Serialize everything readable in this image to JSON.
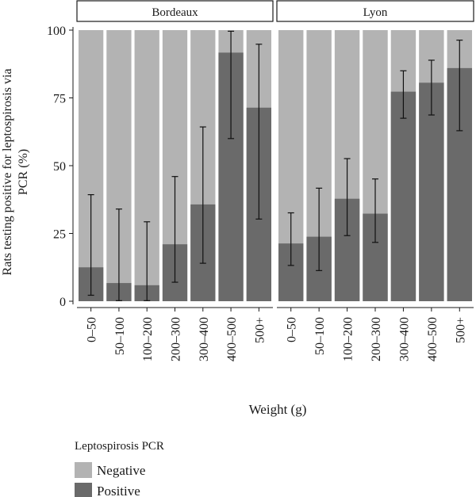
{
  "chart_data": {
    "type": "bar",
    "stacked": true,
    "facets": [
      "Bordeaux",
      "Lyon"
    ],
    "categories": [
      "0–50",
      "50–100",
      "100–200",
      "200–300",
      "300–400",
      "400–500",
      "500+"
    ],
    "xlabel": "Weight (g)",
    "ylabel_line1": "Rats testing positive for leptospirosis via",
    "ylabel_line2": "PCR (%)",
    "yticks": [
      "0",
      "25",
      "50",
      "75",
      "100"
    ],
    "ylim": [
      0,
      100
    ],
    "series": [
      {
        "name": "Positive",
        "color": "#6a6a6a",
        "panels": [
          {
            "facet": "Bordeaux",
            "values": [
              12.5,
              6.7,
              5.9,
              21,
              35.7,
              91.7,
              71.4
            ]
          },
          {
            "facet": "Lyon",
            "values": [
              21.3,
              23.8,
              37.8,
              32.3,
              77.3,
              80.6,
              86.0
            ]
          }
        ]
      },
      {
        "name": "Negative",
        "color": "#b3b3b3"
      }
    ],
    "error_bars": [
      {
        "facet": "Bordeaux",
        "low": [
          2.2,
          0.2,
          0.2,
          7.0,
          14.0,
          60.0,
          30.3
        ],
        "high": [
          39.3,
          34.0,
          29.3,
          46.0,
          64.3,
          99.6,
          94.8
        ]
      },
      {
        "facet": "Lyon",
        "low": [
          13.2,
          11.3,
          24.2,
          21.7,
          67.5,
          68.7,
          62.9
        ],
        "high": [
          32.6,
          41.7,
          52.6,
          45.1,
          85.0,
          88.9,
          96.3
        ]
      }
    ],
    "legend": {
      "title": "Leptospirosis PCR",
      "items": [
        {
          "label": "Negative",
          "color": "#b3b3b3"
        },
        {
          "label": "Positive",
          "color": "#6a6a6a"
        }
      ],
      "placement": "bottom-left"
    }
  }
}
